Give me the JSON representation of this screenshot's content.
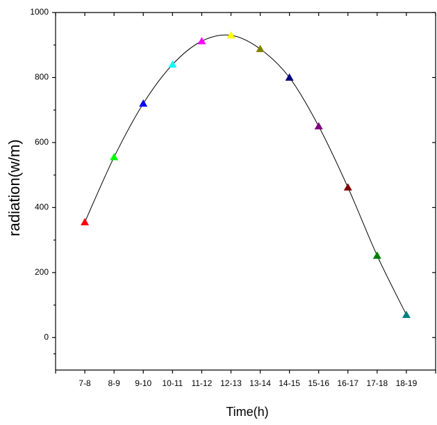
{
  "chart_data": {
    "type": "line",
    "x_label": "Time(h)",
    "y_label": "radiation(w/m)",
    "categories": [
      "7-8",
      "8-9",
      "9-10",
      "10-11",
      "11-12",
      "12-13",
      "13-14",
      "14-15",
      "15-16",
      "16-17",
      "17-18",
      "18-19"
    ],
    "values": [
      355,
      555,
      720,
      840,
      912,
      930,
      888,
      800,
      650,
      462,
      252,
      70
    ],
    "colors": [
      "#ff0000",
      "#00ff00",
      "#0000ff",
      "#00ffff",
      "#ff00ff",
      "#ffff00",
      "#808000",
      "#000080",
      "#800080",
      "#800000",
      "#008000",
      "#008080"
    ],
    "line_color": "#000000",
    "ylim": [
      -100,
      1000
    ],
    "yticks": [
      0,
      200,
      400,
      600,
      800,
      1000
    ]
  }
}
